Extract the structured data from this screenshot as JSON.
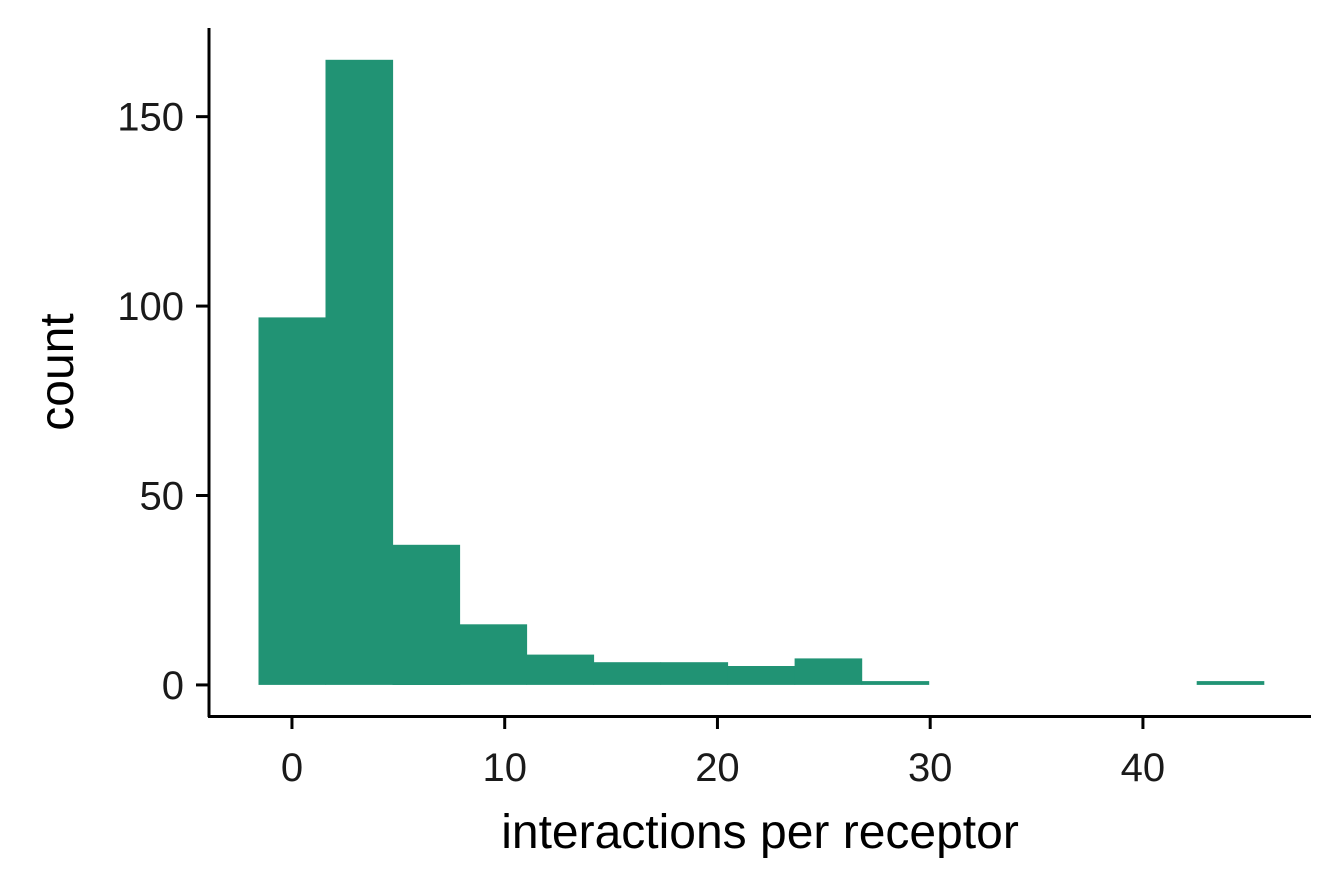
{
  "chart_data": {
    "type": "bar",
    "subtype": "histogram",
    "title": "",
    "xlabel": "interactions per receptor",
    "ylabel": "count",
    "bin_width": 3.15,
    "bins": [
      {
        "x_start": -1.575,
        "x_end": 1.575,
        "count": 97
      },
      {
        "x_start": 1.575,
        "x_end": 4.725,
        "count": 165
      },
      {
        "x_start": 4.725,
        "x_end": 7.875,
        "count": 37
      },
      {
        "x_start": 7.875,
        "x_end": 11.025,
        "count": 16
      },
      {
        "x_start": 11.025,
        "x_end": 14.175,
        "count": 8
      },
      {
        "x_start": 14.175,
        "x_end": 17.325,
        "count": 6
      },
      {
        "x_start": 17.325,
        "x_end": 20.475,
        "count": 6
      },
      {
        "x_start": 20.475,
        "x_end": 23.625,
        "count": 5
      },
      {
        "x_start": 23.625,
        "x_end": 26.775,
        "count": 7
      },
      {
        "x_start": 26.775,
        "x_end": 29.925,
        "count": 1
      },
      {
        "x_start": 29.925,
        "x_end": 33.075,
        "count": 0
      },
      {
        "x_start": 33.075,
        "x_end": 36.225,
        "count": 0
      },
      {
        "x_start": 36.225,
        "x_end": 39.375,
        "count": 0
      },
      {
        "x_start": 39.375,
        "x_end": 42.525,
        "count": 0
      },
      {
        "x_start": 42.525,
        "x_end": 45.675,
        "count": 1
      }
    ],
    "xticks": [
      0,
      10,
      20,
      30,
      40
    ],
    "yticks": [
      0,
      50,
      100,
      150
    ],
    "xlim": [
      -3.9,
      47.9
    ],
    "ylim": [
      -8.2,
      173.4
    ],
    "grid": false,
    "legend": "none",
    "bar_color": "#219374",
    "axis_color": "#000000"
  }
}
